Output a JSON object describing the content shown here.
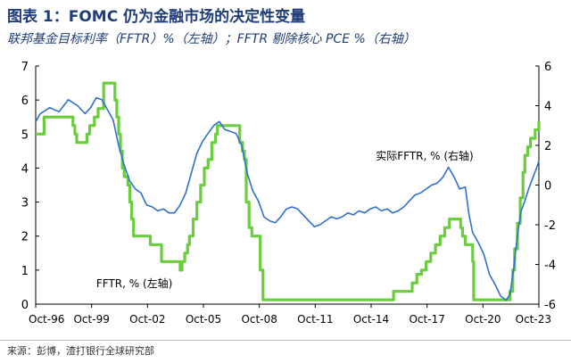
{
  "title": "图表 1：FOMC 仍为金融市场的决定性变量",
  "subtitle": "联邦基金目标利率（FFTR）%（左轴）；FFTR 剔除核心 PCE %（右轴）",
  "source": "来源：彭博，渣打银行全球研究部",
  "colors": {
    "fftr": "#6acd3e",
    "real": "#2f6fd0",
    "axis": "#000000"
  },
  "chart_data": {
    "type": "line",
    "title": "",
    "xlabel": "",
    "ylabel_left": "",
    "ylabel_right": "",
    "x_range": [
      1996.75,
      2023.75
    ],
    "ylim_left": [
      0,
      7
    ],
    "ylim_right": [
      -6,
      6
    ],
    "x_ticks": [
      {
        "label": "Oct-96",
        "x": 1996.75
      },
      {
        "label": "Oct-99",
        "x": 1999.75
      },
      {
        "label": "Oct-02",
        "x": 2002.75
      },
      {
        "label": "Oct-05",
        "x": 2005.75
      },
      {
        "label": "Oct-08",
        "x": 2008.75
      },
      {
        "label": "Oct-11",
        "x": 2011.75
      },
      {
        "label": "Oct-14",
        "x": 2014.75
      },
      {
        "label": "Oct-17",
        "x": 2017.75
      },
      {
        "label": "Oct-20",
        "x": 2020.75
      },
      {
        "label": "Oct-23",
        "x": 2023.75
      }
    ],
    "y_ticks_left": [
      0,
      1,
      2,
      3,
      4,
      5,
      6,
      7
    ],
    "y_ticks_right": [
      -6,
      -4,
      -2,
      0,
      2,
      4,
      6
    ],
    "grid": false,
    "series": [
      {
        "name": "FFTR, % (左轴)",
        "axis": "left",
        "step": true,
        "x": [
          1996.75,
          1997.2,
          1998.75,
          1998.85,
          1998.95,
          1999.5,
          1999.65,
          1999.9,
          2000.1,
          2000.4,
          2001.0,
          2001.1,
          2001.2,
          2001.3,
          2001.4,
          2001.5,
          2001.7,
          2001.8,
          2001.9,
          2002.0,
          2002.9,
          2003.5,
          2004.5,
          2004.6,
          2004.75,
          2004.9,
          2005.0,
          2005.2,
          2005.4,
          2005.6,
          2005.8,
          2006.0,
          2006.2,
          2006.4,
          2006.5,
          2007.7,
          2007.85,
          2007.95,
          2008.05,
          2008.2,
          2008.35,
          2008.8,
          2008.95,
          2015.95,
          2016.95,
          2017.2,
          2017.45,
          2017.7,
          2017.95,
          2018.2,
          2018.45,
          2018.7,
          2018.95,
          2019.55,
          2019.65,
          2019.8,
          2020.2,
          2020.25,
          2022.2,
          2022.35,
          2022.45,
          2022.6,
          2022.75,
          2022.9,
          2023.0,
          2023.15,
          2023.3,
          2023.55,
          2023.75
        ],
        "y": [
          5.0,
          5.5,
          5.25,
          5.0,
          4.75,
          5.0,
          5.25,
          5.5,
          5.75,
          6.5,
          6.0,
          5.5,
          5.0,
          4.5,
          4.0,
          3.75,
          3.5,
          3.0,
          2.5,
          2.0,
          1.75,
          1.25,
          1.0,
          1.25,
          1.5,
          1.75,
          2.0,
          2.5,
          3.0,
          3.5,
          4.0,
          4.25,
          4.75,
          5.0,
          5.25,
          4.75,
          4.5,
          4.25,
          3.0,
          2.25,
          2.0,
          1.0,
          0.125,
          0.375,
          0.625,
          0.875,
          1.0,
          1.25,
          1.5,
          1.75,
          2.0,
          2.25,
          2.5,
          2.25,
          2.0,
          1.75,
          1.25,
          0.125,
          0.375,
          1.0,
          1.625,
          2.375,
          3.125,
          3.875,
          4.375,
          4.625,
          4.875,
          5.125,
          5.375
        ]
      },
      {
        "name": "实际FFTR, % (右轴)",
        "axis": "right",
        "step": false,
        "x": [
          1996.75,
          1997.0,
          1997.5,
          1998.0,
          1998.5,
          1999.0,
          1999.4,
          1999.7,
          2000.0,
          2000.3,
          2000.6,
          2000.9,
          2001.2,
          2001.5,
          2001.8,
          2002.1,
          2002.4,
          2002.7,
          2003.0,
          2003.3,
          2003.6,
          2003.9,
          2004.2,
          2004.5,
          2004.8,
          2005.1,
          2005.4,
          2005.7,
          2006.0,
          2006.3,
          2006.6,
          2006.9,
          2007.2,
          2007.5,
          2007.8,
          2008.1,
          2008.4,
          2008.7,
          2009.0,
          2009.3,
          2009.6,
          2009.9,
          2010.2,
          2010.5,
          2010.8,
          2011.1,
          2011.4,
          2011.7,
          2012.0,
          2012.3,
          2012.6,
          2012.9,
          2013.2,
          2013.5,
          2013.8,
          2014.1,
          2014.4,
          2014.7,
          2015.0,
          2015.3,
          2015.6,
          2015.9,
          2016.2,
          2016.5,
          2016.8,
          2017.1,
          2017.4,
          2017.7,
          2018.0,
          2018.3,
          2018.6,
          2018.9,
          2019.2,
          2019.5,
          2019.8,
          2020.0,
          2020.2,
          2020.5,
          2020.8,
          2021.1,
          2021.4,
          2021.7,
          2022.0,
          2022.2,
          2022.4,
          2022.6,
          2022.8,
          2023.0,
          2023.2,
          2023.4,
          2023.6,
          2023.75
        ],
        "y": [
          3.2,
          3.6,
          3.9,
          3.7,
          4.3,
          4.0,
          3.6,
          3.9,
          4.4,
          4.3,
          3.8,
          3.3,
          2.0,
          1.0,
          0.2,
          -0.2,
          -0.4,
          -1.0,
          -1.1,
          -1.3,
          -1.2,
          -1.4,
          -1.4,
          -1.0,
          -0.4,
          0.6,
          1.6,
          2.2,
          2.6,
          3.0,
          3.2,
          2.8,
          2.7,
          2.6,
          2.0,
          0.6,
          -0.3,
          -0.8,
          -1.6,
          -1.8,
          -1.9,
          -1.6,
          -1.2,
          -1.1,
          -1.2,
          -1.5,
          -1.8,
          -2.1,
          -2.0,
          -1.8,
          -1.6,
          -1.7,
          -1.6,
          -1.4,
          -1.5,
          -1.3,
          -1.4,
          -1.2,
          -1.1,
          -1.3,
          -1.2,
          -1.4,
          -1.3,
          -1.1,
          -0.8,
          -0.5,
          -0.4,
          -0.2,
          0.0,
          0.1,
          0.4,
          0.9,
          0.4,
          -0.2,
          -0.1,
          -1.5,
          -2.4,
          -2.9,
          -3.5,
          -4.5,
          -5.0,
          -5.6,
          -5.8,
          -5.5,
          -4.2,
          -2.5,
          -1.3,
          -0.8,
          -0.2,
          0.3,
          0.8,
          1.2
        ]
      }
    ],
    "annotations": [
      {
        "text": "实际FFTR, % (右轴)",
        "x": 2015.0,
        "y_left": 4.25,
        "series": 1
      },
      {
        "text": "FFTR, % (左轴)",
        "x": 2000.0,
        "y_left": 0.5,
        "series": 0
      }
    ]
  }
}
